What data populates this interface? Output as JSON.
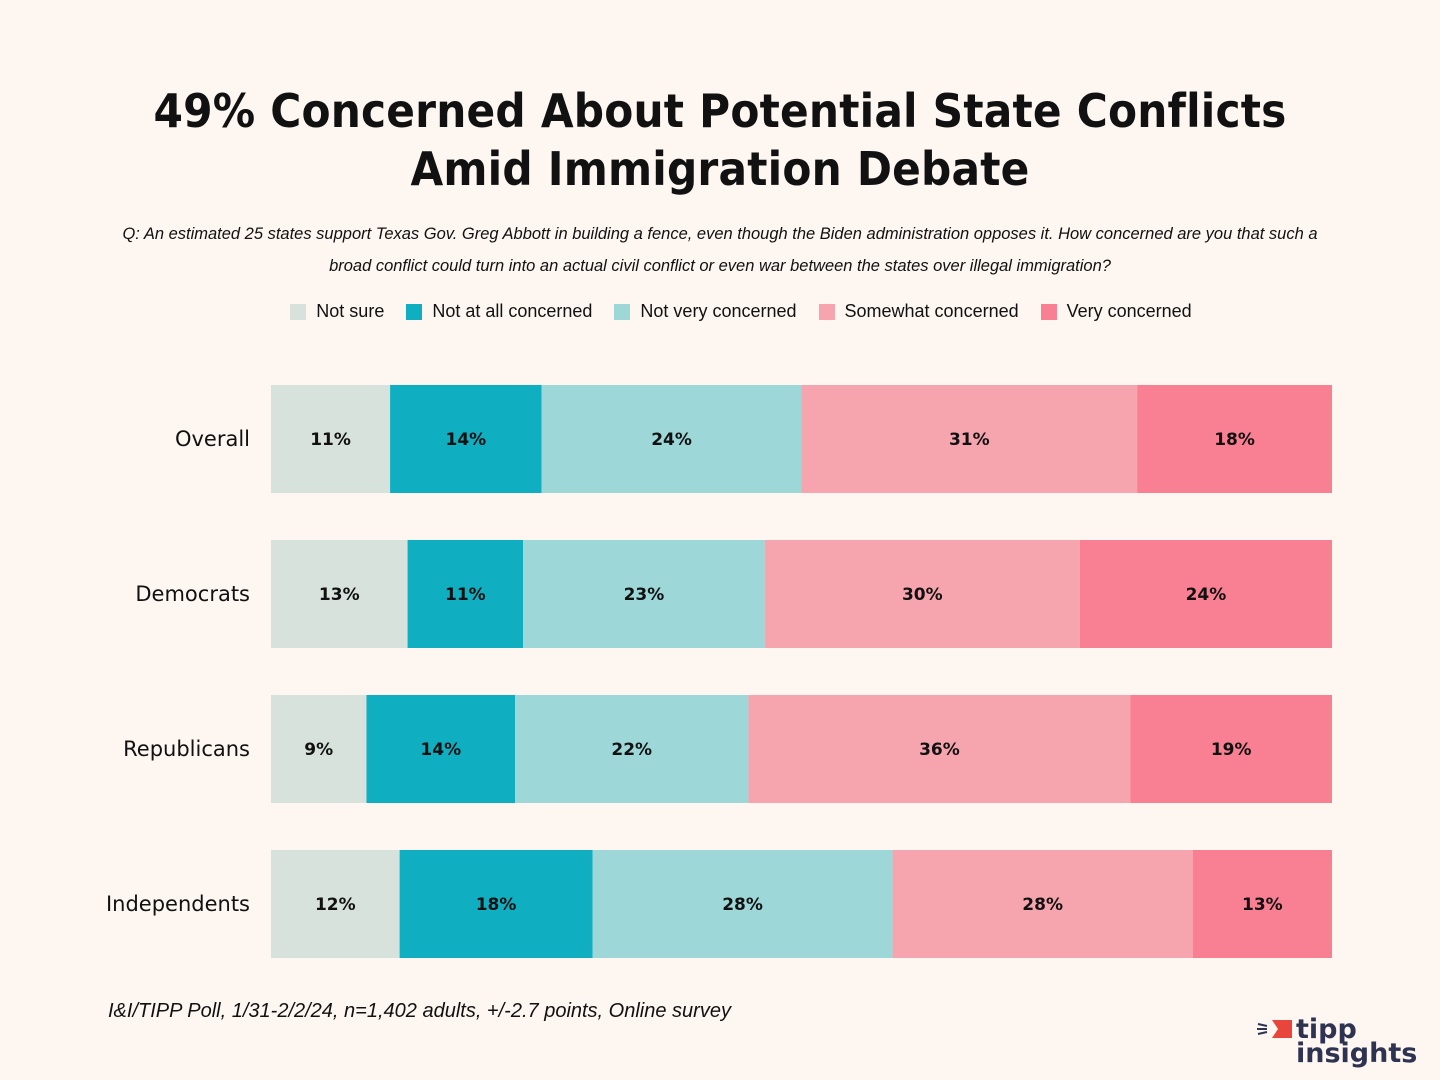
{
  "chart_data": {
    "type": "bar",
    "orientation": "horizontal",
    "stacked": true,
    "title": "49% Concerned About Potential State Conflicts Amid Immigration Debate",
    "subtitle": "Q: An estimated 25 states support Texas Gov. Greg Abbott in building a fence, even though the Biden administration opposes it.  How concerned are you that such a broad conflict could turn into an actual civil conflict or even war between the states over illegal immigration?",
    "xlabel": "",
    "ylabel": "",
    "categories": [
      "Overall",
      "Democrats",
      "Republicans",
      "Independents"
    ],
    "series": [
      {
        "name": "Not sure",
        "color": "#d7e2dd",
        "values": [
          11,
          13,
          9,
          12
        ]
      },
      {
        "name": "Not at all concerned",
        "color": "#0fafc1",
        "values": [
          14,
          11,
          14,
          18
        ]
      },
      {
        "name": "Not very concerned",
        "color": "#9dd7d8",
        "values": [
          24,
          23,
          22,
          28
        ]
      },
      {
        "name": "Somewhat concerned",
        "color": "#f6a4ae",
        "values": [
          31,
          30,
          36,
          28
        ]
      },
      {
        "name": "Very concerned",
        "color": "#f97f93",
        "values": [
          18,
          24,
          19,
          13
        ]
      }
    ],
    "value_suffix": "%",
    "legend_position": "top",
    "grid": false,
    "source": "I&I/TIPP Poll, 1/31-2/2/24, n=1,402 adults, +/-2.7 points, Online survey"
  },
  "branding": {
    "logo_line1": "tipp",
    "logo_line2": "insights"
  }
}
